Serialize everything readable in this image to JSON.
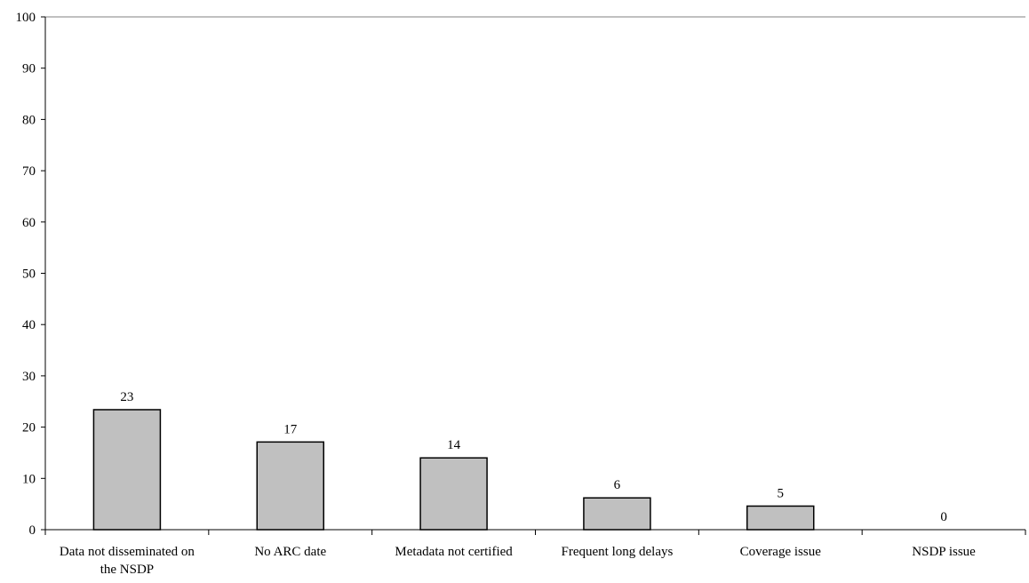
{
  "chart_data": {
    "type": "bar",
    "categories": [
      [
        "Data not disseminated on",
        "the NSDP"
      ],
      [
        "No ARC date"
      ],
      [
        "Metadata not certified"
      ],
      [
        "Frequent long delays"
      ],
      [
        "Coverage issue"
      ],
      [
        "NSDP issue"
      ]
    ],
    "values": [
      23.4,
      17.1,
      14.0,
      6.2,
      4.6,
      0
    ],
    "data_labels": [
      "23",
      "17",
      "14",
      "6",
      "5",
      "0"
    ],
    "ylim": [
      0,
      100
    ],
    "yticks": [
      "0",
      "10",
      "20",
      "30",
      "40",
      "50",
      "60",
      "70",
      "80",
      "90",
      "100"
    ],
    "title": "",
    "xlabel": "",
    "ylabel": "",
    "grid": false,
    "legend": "none",
    "colors": {
      "bar_fill": "#c0c0c0",
      "bar_stroke": "#000000",
      "axis": "#000000",
      "top_border": "#808080"
    }
  }
}
